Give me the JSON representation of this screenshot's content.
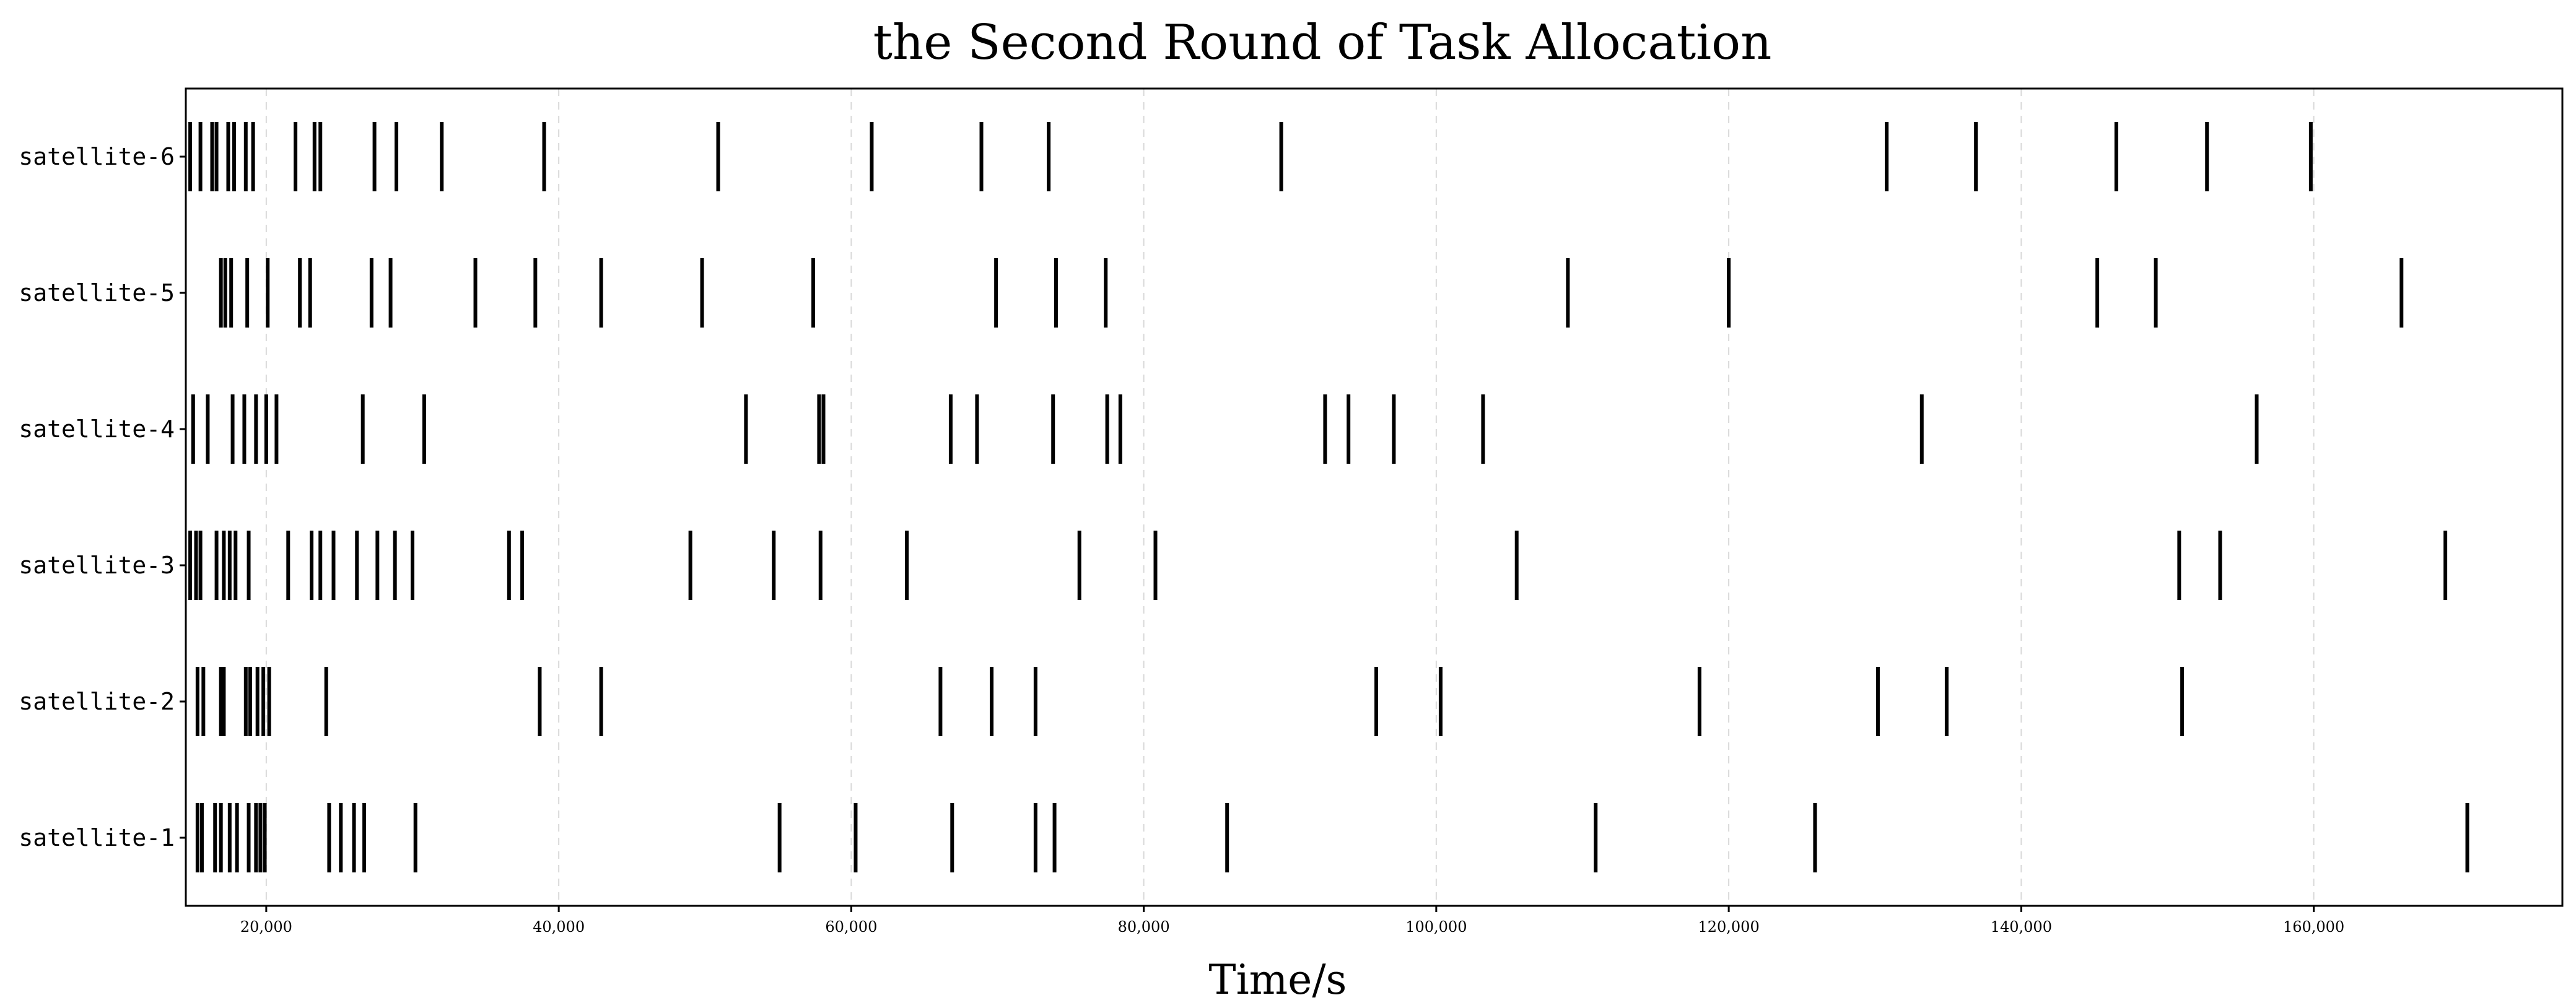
{
  "chart_data": {
    "type": "event-plot",
    "title": "the Second Round of Task Allocation",
    "xlabel": "Time/s",
    "ylabel": "",
    "xlim": [
      14500,
      177000
    ],
    "grid": "x-dashed",
    "legend": "none",
    "colors": {
      "event": "#000000",
      "grid": "#d9d9d9",
      "frame": "#000000"
    },
    "xticks": [
      {
        "value": 20000,
        "label": "20,000"
      },
      {
        "value": 40000,
        "label": "40,000"
      },
      {
        "value": 60000,
        "label": "60,000"
      },
      {
        "value": 80000,
        "label": "80,000"
      },
      {
        "value": 100000,
        "label": "100,000"
      },
      {
        "value": 120000,
        "label": "120,000"
      },
      {
        "value": 140000,
        "label": "140,000"
      },
      {
        "value": 160000,
        "label": "160,000"
      }
    ],
    "series": [
      {
        "name": "satellite-6",
        "times": [
          14800,
          15500,
          16300,
          16600,
          17400,
          17800,
          18600,
          19100,
          22000,
          23300,
          23700,
          27400,
          28900,
          32000,
          39000,
          50900,
          61400,
          68900,
          73500,
          89400,
          130800,
          136900,
          146500,
          152700,
          159800
        ]
      },
      {
        "name": "satellite-5",
        "times": [
          16900,
          17200,
          17600,
          18700,
          20100,
          22300,
          23000,
          27200,
          28500,
          34300,
          38400,
          42900,
          49800,
          57400,
          69900,
          74000,
          77400,
          109000,
          120000,
          145200,
          149200,
          166000
        ]
      },
      {
        "name": "satellite-4",
        "times": [
          15000,
          16000,
          17700,
          18500,
          19300,
          20000,
          20700,
          26600,
          30800,
          52800,
          57800,
          58100,
          66800,
          68600,
          73800,
          77500,
          78400,
          92400,
          94000,
          97100,
          103200,
          133200,
          156100
        ]
      },
      {
        "name": "satellite-3",
        "times": [
          14800,
          15200,
          15500,
          16600,
          17100,
          17500,
          17900,
          18800,
          21500,
          23100,
          23700,
          24600,
          26200,
          27600,
          28800,
          30000,
          36600,
          37500,
          49000,
          54700,
          57900,
          63800,
          75600,
          80800,
          105500,
          150800,
          153600,
          169000
        ]
      },
      {
        "name": "satellite-2",
        "times": [
          15300,
          15700,
          16900,
          17100,
          18600,
          18900,
          19400,
          19800,
          20200,
          24100,
          38700,
          42900,
          66100,
          69600,
          72600,
          95900,
          100300,
          118000,
          130200,
          134900,
          151000
        ]
      },
      {
        "name": "satellite-1",
        "times": [
          15300,
          15600,
          16500,
          16900,
          17500,
          18000,
          18800,
          19300,
          19600,
          19900,
          24300,
          25100,
          26000,
          26700,
          30200,
          55100,
          60300,
          66900,
          72600,
          73900,
          85700,
          110900,
          125900,
          170500
        ]
      }
    ]
  }
}
